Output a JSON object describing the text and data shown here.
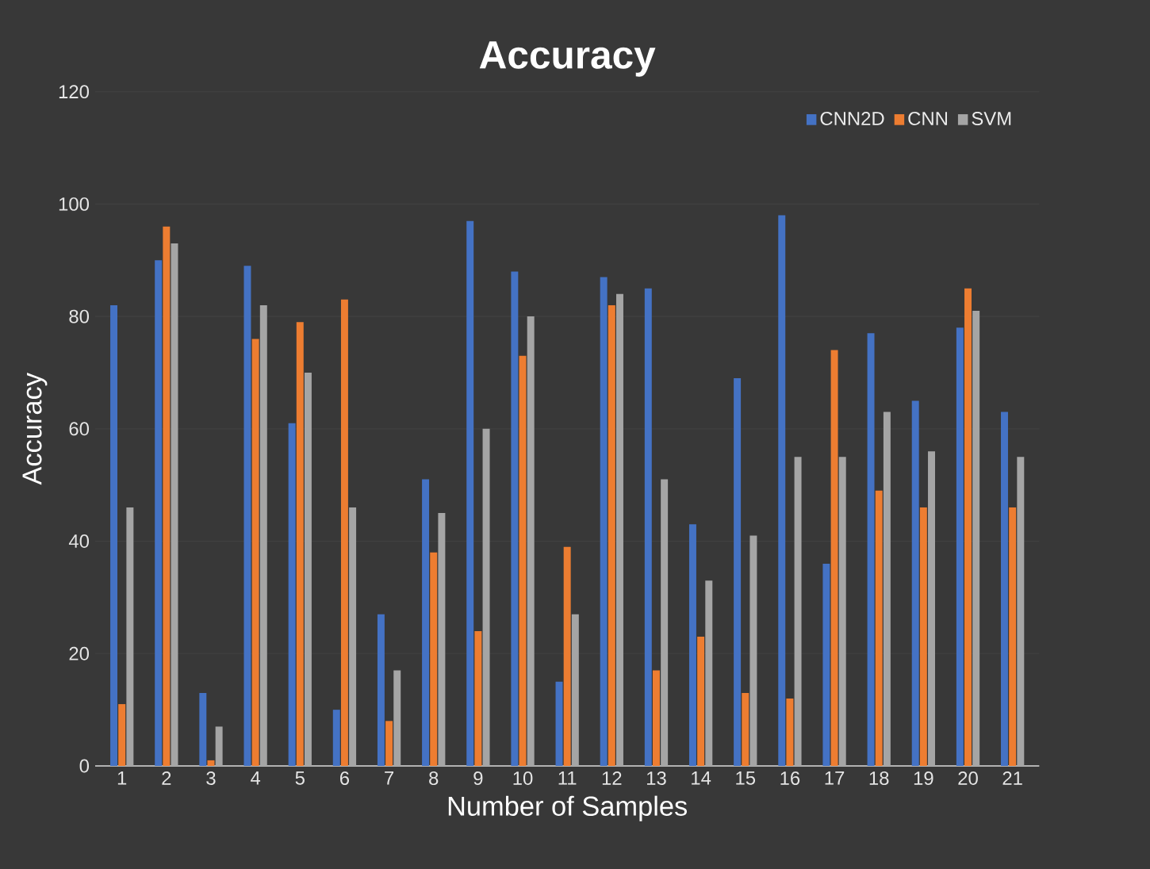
{
  "chart_data": {
    "type": "bar",
    "title": "Accuracy",
    "xlabel": "Number of Samples",
    "ylabel": "Accuracy",
    "categories": [
      "1",
      "2",
      "3",
      "4",
      "5",
      "6",
      "7",
      "8",
      "9",
      "10",
      "11",
      "12",
      "13",
      "14",
      "15",
      "16",
      "17",
      "18",
      "19",
      "20",
      "21"
    ],
    "series": [
      {
        "name": "CNN2D",
        "color": "#4472c4",
        "values": [
          82,
          90,
          13,
          89,
          61,
          10,
          27,
          51,
          97,
          88,
          15,
          87,
          85,
          43,
          69,
          98,
          36,
          77,
          65,
          78,
          63
        ]
      },
      {
        "name": "CNN",
        "color": "#ed7d31",
        "values": [
          11,
          96,
          1,
          76,
          79,
          83,
          8,
          38,
          24,
          73,
          39,
          82,
          17,
          23,
          13,
          12,
          74,
          49,
          46,
          85,
          46
        ]
      },
      {
        "name": "SVM",
        "color": "#a5a5a5",
        "values": [
          46,
          93,
          7,
          82,
          70,
          46,
          17,
          45,
          60,
          80,
          27,
          84,
          51,
          33,
          41,
          55,
          55,
          63,
          56,
          81,
          55
        ]
      }
    ],
    "ylim": [
      0,
      120
    ],
    "yticks": [
      0,
      20,
      40,
      60,
      80,
      100,
      120
    ],
    "grid": "y",
    "legend": "top right"
  }
}
